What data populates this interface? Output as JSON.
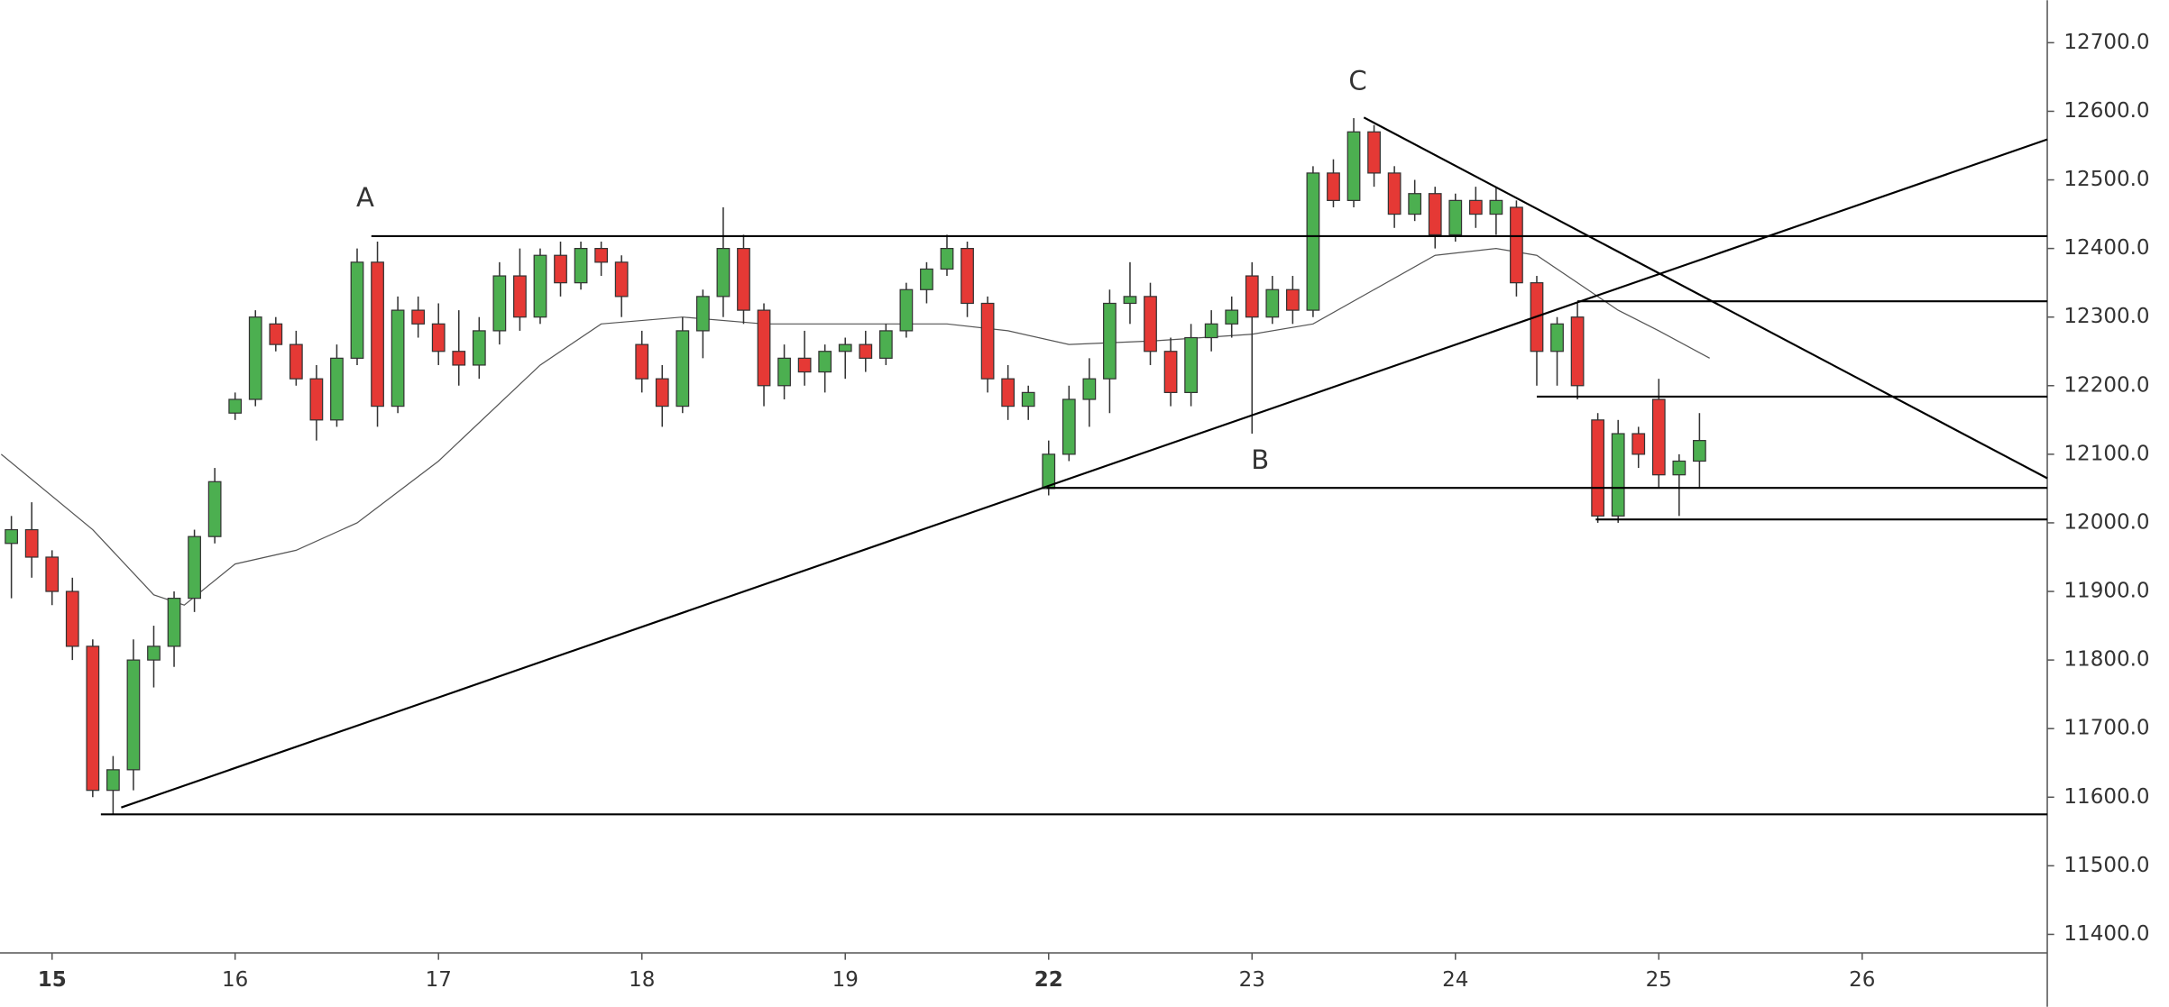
{
  "chart_data": {
    "type": "candlestick",
    "x": [
      -0.1,
      0,
      0.1,
      0.2,
      0.3,
      0.4,
      0.5,
      0.6,
      0.7,
      0.8,
      0.9,
      1.0,
      1.1,
      1.2,
      1.3,
      1.4,
      1.5,
      1.6,
      1.7,
      1.8,
      1.9,
      2.0,
      2.1,
      2.2,
      2.3,
      2.4,
      2.5,
      2.6,
      2.7,
      2.8,
      2.9,
      3.0,
      3.1,
      3.2,
      3.3,
      3.4,
      3.5,
      3.6,
      3.7,
      3.8,
      3.9,
      4.0,
      4.1,
      4.2,
      4.3,
      4.4,
      4.5,
      4.6,
      4.7,
      4.8,
      4.9,
      5.0,
      5.1,
      5.2,
      5.3,
      5.4,
      5.5,
      5.6,
      5.7,
      5.8,
      5.9,
      6.0,
      6.1,
      6.2,
      6.3,
      6.4,
      6.5,
      6.6,
      6.7,
      6.8,
      6.9,
      7.0,
      7.1,
      7.2,
      7.3,
      7.4,
      7.5,
      7.6,
      7.7,
      7.8,
      7.9,
      8.0,
      8.1,
      8.2
    ],
    "open": [
      11970,
      11990,
      11950,
      11900,
      11820,
      11610,
      11640,
      11800,
      11820,
      11890,
      11980,
      12160,
      12180,
      12290,
      12260,
      12210,
      12150,
      12240,
      12380,
      12170,
      12310,
      12290,
      12250,
      12230,
      12280,
      12360,
      12300,
      12390,
      12350,
      12400,
      12380,
      12260,
      12210,
      12170,
      12280,
      12330,
      12400,
      12310,
      12200,
      12240,
      12220,
      12250,
      12260,
      12240,
      12280,
      12340,
      12370,
      12400,
      12320,
      12210,
      12170,
      12050,
      12100,
      12180,
      12210,
      12320,
      12330,
      12250,
      12190,
      12270,
      12290,
      12360,
      12300,
      12340,
      12310,
      12510,
      12470,
      12570,
      12510,
      12450,
      12480,
      12420,
      12470,
      12450,
      12460,
      12350,
      12250,
      12300,
      12150,
      12010,
      12130,
      12180,
      12070,
      12090
    ],
    "high": [
      12010,
      12030,
      11960,
      11920,
      11830,
      11660,
      11830,
      11850,
      11900,
      11990,
      12080,
      12190,
      12310,
      12300,
      12280,
      12230,
      12260,
      12400,
      12410,
      12330,
      12330,
      12320,
      12310,
      12300,
      12380,
      12400,
      12400,
      12410,
      12410,
      12410,
      12390,
      12280,
      12230,
      12300,
      12340,
      12460,
      12420,
      12320,
      12260,
      12280,
      12260,
      12270,
      12280,
      12290,
      12350,
      12380,
      12420,
      12410,
      12330,
      12230,
      12200,
      12120,
      12200,
      12240,
      12340,
      12380,
      12350,
      12270,
      12290,
      12310,
      12330,
      12380,
      12360,
      12360,
      12520,
      12530,
      12590,
      12580,
      12520,
      12500,
      12490,
      12480,
      12490,
      12490,
      12470,
      12360,
      12300,
      12320,
      12160,
      12150,
      12140,
      12210,
      12100,
      12160
    ],
    "low": [
      11890,
      11920,
      11880,
      11800,
      11600,
      11575,
      11610,
      11760,
      11790,
      11870,
      11970,
      12150,
      12170,
      12250,
      12200,
      12120,
      12140,
      12230,
      12140,
      12160,
      12270,
      12230,
      12200,
      12210,
      12260,
      12280,
      12290,
      12330,
      12340,
      12360,
      12300,
      12190,
      12140,
      12160,
      12240,
      12300,
      12290,
      12170,
      12180,
      12200,
      12190,
      12210,
      12220,
      12230,
      12270,
      12320,
      12360,
      12300,
      12190,
      12150,
      12150,
      12040,
      12090,
      12140,
      12160,
      12290,
      12230,
      12170,
      12170,
      12250,
      12270,
      12130,
      12290,
      12290,
      12300,
      12460,
      12460,
      12490,
      12430,
      12440,
      12400,
      12410,
      12430,
      12420,
      12330,
      12200,
      12200,
      12180,
      12000,
      12000,
      12080,
      12050,
      12010,
      12050
    ],
    "close": [
      11990,
      11950,
      11900,
      11820,
      11610,
      11640,
      11800,
      11820,
      11890,
      11980,
      12060,
      12180,
      12300,
      12260,
      12210,
      12150,
      12240,
      12380,
      12170,
      12310,
      12290,
      12250,
      12230,
      12280,
      12360,
      12300,
      12390,
      12350,
      12400,
      12380,
      12330,
      12210,
      12170,
      12280,
      12330,
      12400,
      12310,
      12200,
      12240,
      12220,
      12250,
      12260,
      12240,
      12280,
      12340,
      12370,
      12400,
      12320,
      12210,
      12170,
      12190,
      12100,
      12180,
      12210,
      12320,
      12330,
      12250,
      12190,
      12270,
      12290,
      12310,
      12300,
      12340,
      12310,
      12510,
      12470,
      12570,
      12510,
      12450,
      12480,
      12420,
      12470,
      12450,
      12470,
      12350,
      12250,
      12290,
      12200,
      12010,
      12130,
      12100,
      12070,
      12090,
      12120
    ],
    "up_color": "#4caf50",
    "down_color": "#e53935",
    "moving_average": {
      "color": "#555555",
      "x": [
        -0.15,
        0.3,
        0.6,
        0.75,
        1.0,
        1.3,
        1.6,
        2.0,
        2.5,
        2.8,
        3.2,
        3.6,
        4.0,
        4.5,
        4.8,
        5.1,
        5.5,
        6.0,
        6.3,
        6.6,
        6.9,
        7.2,
        7.4,
        7.6,
        7.8,
        8.0,
        8.25
      ],
      "values": [
        12100,
        11990,
        11895,
        11880,
        11940,
        11960,
        12000,
        12090,
        12230,
        12290,
        12300,
        12290,
        12290,
        12290,
        12280,
        12260,
        12265,
        12275,
        12290,
        12340,
        12390,
        12400,
        12390,
        12350,
        12310,
        12280,
        12240
      ]
    },
    "lines": [
      {
        "x": [
          0.34,
          9.91
        ],
        "y": [
          11575,
          11575
        ]
      },
      {
        "x": [
          0.44,
          9.91
        ],
        "y": [
          11585,
          12559
        ]
      },
      {
        "x": [
          1.67,
          9.91
        ],
        "y": [
          12418,
          12418
        ]
      },
      {
        "x": [
          6.55,
          9.91
        ],
        "y": [
          12591,
          12065
        ]
      },
      {
        "x": [
          4.99,
          9.91
        ],
        "y": [
          12051,
          12051
        ]
      },
      {
        "x": [
          7.69,
          9.91
        ],
        "y": [
          12005,
          12005
        ]
      },
      {
        "x": [
          7.4,
          9.91
        ],
        "y": [
          12184,
          12184
        ]
      },
      {
        "x": [
          7.6,
          9.91
        ],
        "y": [
          12323,
          12323
        ]
      }
    ],
    "annotations": [
      {
        "text": "A",
        "x": 1.64,
        "y": 12472
      },
      {
        "text": "B",
        "x": 6.04,
        "y": 12089
      },
      {
        "text": "C",
        "x": 6.52,
        "y": 12642
      }
    ],
    "xlim": [
      -0.156,
      9.91
    ],
    "ylim": [
      11373,
      12762
    ],
    "xticks": [
      {
        "value": 0.1,
        "label": "15",
        "major": true
      },
      {
        "value": 1,
        "label": "16"
      },
      {
        "value": 2,
        "label": "17"
      },
      {
        "value": 3,
        "label": "18"
      },
      {
        "value": 4,
        "label": "19"
      },
      {
        "value": 5,
        "label": "22",
        "major": true
      },
      {
        "value": 6,
        "label": "23"
      },
      {
        "value": 7,
        "label": "24"
      },
      {
        "value": 8,
        "label": "25"
      },
      {
        "value": 9,
        "label": "26"
      }
    ],
    "yticks": [
      {
        "value": 12700,
        "label": "12700.0"
      },
      {
        "value": 12600,
        "label": "12600.0"
      },
      {
        "value": 12500,
        "label": "12500.0"
      },
      {
        "value": 12400,
        "label": "12400.0"
      },
      {
        "value": 12300,
        "label": "12300.0"
      },
      {
        "value": 12200,
        "label": "12200.0"
      },
      {
        "value": 12100,
        "label": "12100.0"
      },
      {
        "value": 12000,
        "label": "12000.0"
      },
      {
        "value": 11900,
        "label": "11900.0"
      },
      {
        "value": 11800,
        "label": "11800.0"
      },
      {
        "value": 11700,
        "label": "11700.0"
      },
      {
        "value": 11600,
        "label": "11600.0"
      },
      {
        "value": 11500,
        "label": "11500.0"
      },
      {
        "value": 11400,
        "label": "11400.0"
      }
    ]
  }
}
